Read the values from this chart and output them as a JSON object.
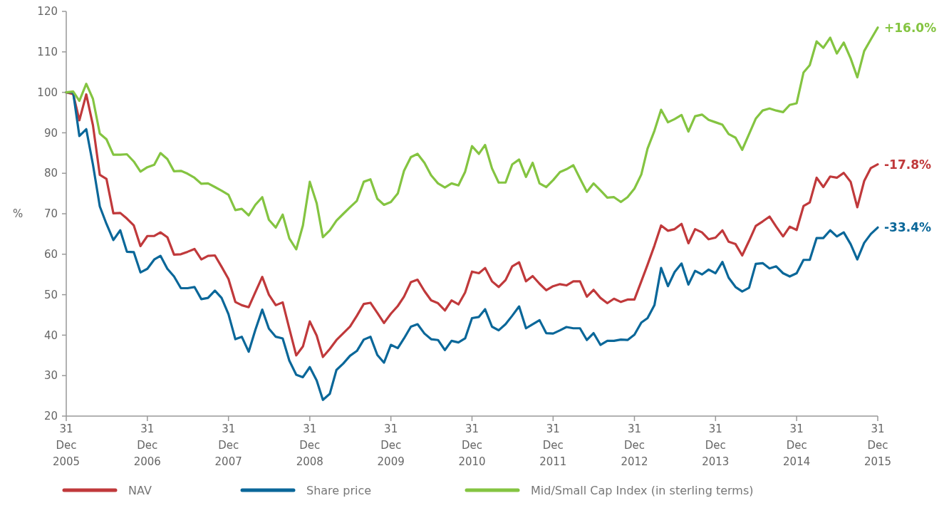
{
  "chart_data": {
    "type": "line",
    "ylabel": "%",
    "ylim": [
      20,
      120
    ],
    "yticks": [
      20,
      30,
      40,
      50,
      60,
      70,
      80,
      90,
      100,
      110,
      120
    ],
    "xlim": [
      "2005-12-31",
      "2015-12-31"
    ],
    "xticks": [
      {
        "value": "2005-12-31",
        "label": "31 Dec 2005"
      },
      {
        "value": "2006-12-31",
        "label": "31 Dec 2006"
      },
      {
        "value": "2007-12-31",
        "label": "31 Dec 2007"
      },
      {
        "value": "2008-12-31",
        "label": "31 Dec 2008"
      },
      {
        "value": "2009-12-31",
        "label": "31 Dec 2009"
      },
      {
        "value": "2010-12-31",
        "label": "31 Dec 2010"
      },
      {
        "value": "2011-12-31",
        "label": "31 Dec 2011"
      },
      {
        "value": "2012-12-31",
        "label": "31 Dec 2012"
      },
      {
        "value": "2013-12-31",
        "label": "31 Dec 2013"
      },
      {
        "value": "2014-12-31",
        "label": "31 Dec 2014"
      },
      {
        "value": "2015-12-31",
        "label": "31 Dec 2015"
      }
    ],
    "x": [
      "2005-12-31",
      "2006-01-31",
      "2006-02-28",
      "2006-03-31",
      "2006-04-30",
      "2006-05-31",
      "2006-06-30",
      "2006-07-31",
      "2006-08-31",
      "2006-09-30",
      "2006-10-31",
      "2006-11-30",
      "2006-12-31",
      "2007-01-31",
      "2007-02-28",
      "2007-03-31",
      "2007-04-30",
      "2007-05-31",
      "2007-06-30",
      "2007-07-31",
      "2007-08-31",
      "2007-09-30",
      "2007-10-31",
      "2007-11-30",
      "2007-12-31",
      "2008-01-31",
      "2008-02-29",
      "2008-03-31",
      "2008-04-30",
      "2008-05-31",
      "2008-06-30",
      "2008-07-31",
      "2008-08-31",
      "2008-09-30",
      "2008-10-31",
      "2008-11-30",
      "2008-12-31",
      "2009-01-31",
      "2009-02-28",
      "2009-03-31",
      "2009-04-30",
      "2009-05-31",
      "2009-06-30",
      "2009-07-31",
      "2009-08-31",
      "2009-09-30",
      "2009-10-31",
      "2009-11-30",
      "2009-12-31",
      "2010-01-31",
      "2010-02-28",
      "2010-03-31",
      "2010-04-30",
      "2010-05-31",
      "2010-06-30",
      "2010-07-31",
      "2010-08-31",
      "2010-09-30",
      "2010-10-31",
      "2010-11-30",
      "2010-12-31",
      "2011-01-31",
      "2011-02-28",
      "2011-03-31",
      "2011-04-30",
      "2011-05-31",
      "2011-06-30",
      "2011-07-31",
      "2011-08-31",
      "2011-09-30",
      "2011-10-31",
      "2011-11-30",
      "2011-12-31",
      "2012-01-31",
      "2012-02-29",
      "2012-03-31",
      "2012-04-30",
      "2012-05-31",
      "2012-06-30",
      "2012-07-31",
      "2012-08-31",
      "2012-09-30",
      "2012-10-31",
      "2012-11-30",
      "2012-12-31",
      "2013-01-31",
      "2013-02-28",
      "2013-03-31",
      "2013-04-30",
      "2013-05-31",
      "2013-06-30",
      "2013-07-31",
      "2013-08-31",
      "2013-09-30",
      "2013-10-31",
      "2013-11-30",
      "2013-12-31",
      "2014-01-31",
      "2014-02-28",
      "2014-03-31",
      "2014-04-30",
      "2014-05-31",
      "2014-06-30",
      "2014-07-31",
      "2014-08-31",
      "2014-09-30",
      "2014-10-31",
      "2014-11-30",
      "2014-12-31",
      "2015-01-31",
      "2015-02-28",
      "2015-03-31",
      "2015-04-30",
      "2015-05-31",
      "2015-06-30",
      "2015-07-31",
      "2015-08-31",
      "2015-09-30",
      "2015-10-31",
      "2015-11-30",
      "2015-12-31"
    ],
    "series": [
      {
        "name": "NAV",
        "color": "#c0393b",
        "values": [
          100,
          99.6,
          93.1,
          99.5,
          91.9,
          79.6,
          78.6,
          70.1,
          70.2,
          68.8,
          67.1,
          62.0,
          64.5,
          64.5,
          65.4,
          64.2,
          59.9,
          60.0,
          60.6,
          61.3,
          58.7,
          59.6,
          59.7,
          56.9,
          53.9,
          48.2,
          47.4,
          46.9,
          50.6,
          54.4,
          50.0,
          47.4,
          48.1,
          41.6,
          35.0,
          37.2,
          43.4,
          39.9,
          34.6,
          36.6,
          38.8,
          40.5,
          42.1,
          44.8,
          47.7,
          48.0,
          45.5,
          43.0,
          45.3,
          47.2,
          49.5,
          53.1,
          53.7,
          50.9,
          48.6,
          47.9,
          46.1,
          48.6,
          47.6,
          50.5,
          55.7,
          55.3,
          56.6,
          53.3,
          51.9,
          53.6,
          57.0,
          58.0,
          53.3,
          54.6,
          52.7,
          51.1,
          52.1,
          52.6,
          52.3,
          53.3,
          53.3,
          49.5,
          51.2,
          49.2,
          47.9,
          49.0,
          48.2,
          48.8,
          48.8,
          53.3,
          57.4,
          62.1,
          67.1,
          65.8,
          66.2,
          67.5,
          62.7,
          66.2,
          65.4,
          63.7,
          64.1,
          65.9,
          63.1,
          62.5,
          59.7,
          63.3,
          67.0,
          68.1,
          69.3,
          66.8,
          64.4,
          66.8,
          66.0,
          71.9,
          72.8,
          78.9,
          76.6,
          79.2,
          78.9,
          80.1,
          77.9,
          71.6,
          78.1,
          81.3,
          82.2
        ]
      },
      {
        "name": "Share price",
        "color": "#0a6799",
        "values": [
          100,
          100,
          89.2,
          90.9,
          82.2,
          71.8,
          67.5,
          63.5,
          65.9,
          60.6,
          60.5,
          55.5,
          56.4,
          58.7,
          59.6,
          56.4,
          54.5,
          51.6,
          51.6,
          51.9,
          48.9,
          49.2,
          51.0,
          49.2,
          45.2,
          39.0,
          39.6,
          35.9,
          41.3,
          46.3,
          41.6,
          39.6,
          39.2,
          33.7,
          30.2,
          29.6,
          32.1,
          28.8,
          24.0,
          25.5,
          31.4,
          33.0,
          34.9,
          36.1,
          38.9,
          39.6,
          35.1,
          33.2,
          37.6,
          36.8,
          39.2,
          42.1,
          42.7,
          40.4,
          39.0,
          38.8,
          36.3,
          38.6,
          38.2,
          39.2,
          44.2,
          44.5,
          46.4,
          42.1,
          41.2,
          42.7,
          44.8,
          47.1,
          41.7,
          42.7,
          43.7,
          40.5,
          40.4,
          41.2,
          42.0,
          41.7,
          41.7,
          38.8,
          40.5,
          37.6,
          38.6,
          38.6,
          38.9,
          38.8,
          40.1,
          43.1,
          44.2,
          47.4,
          56.6,
          52.1,
          55.6,
          57.7,
          52.5,
          55.9,
          55.0,
          56.2,
          55.3,
          58.1,
          54.2,
          51.9,
          50.8,
          51.7,
          57.6,
          57.8,
          56.5,
          57.0,
          55.3,
          54.5,
          55.3,
          58.6,
          58.6,
          64.0,
          64.0,
          65.9,
          64.4,
          65.4,
          62.5,
          58.7,
          62.8,
          65.0,
          66.6
        ]
      },
      {
        "name": "Mid/Small Cap Index (in sterling terms)",
        "color": "#84c441",
        "values": [
          100,
          100.2,
          97.9,
          102.1,
          98.4,
          89.8,
          88.4,
          84.6,
          84.6,
          84.7,
          82.9,
          80.4,
          81.5,
          82.1,
          85.0,
          83.5,
          80.5,
          80.6,
          79.9,
          78.9,
          77.4,
          77.5,
          76.6,
          75.7,
          74.7,
          70.9,
          71.2,
          69.6,
          72.2,
          74.1,
          68.5,
          66.6,
          69.8,
          63.9,
          61.2,
          67.1,
          77.9,
          72.6,
          64.2,
          65.9,
          68.3,
          70.0,
          71.6,
          73.2,
          77.9,
          78.5,
          73.7,
          72.2,
          72.9,
          75.0,
          80.6,
          84.0,
          84.8,
          82.6,
          79.5,
          77.5,
          76.5,
          77.5,
          77.0,
          80.4,
          86.7,
          84.8,
          87.0,
          81.2,
          77.7,
          77.7,
          82.2,
          83.4,
          79.1,
          82.6,
          77.5,
          76.6,
          78.3,
          80.3,
          81.0,
          82.0,
          78.7,
          75.4,
          77.5,
          75.8,
          74.0,
          74.1,
          72.9,
          74.1,
          76.2,
          79.7,
          86.1,
          90.5,
          95.7,
          92.6,
          93.4,
          94.4,
          90.3,
          94.1,
          94.5,
          93.2,
          92.6,
          92.0,
          89.7,
          88.8,
          85.8,
          89.7,
          93.5,
          95.5,
          96.0,
          95.5,
          95.1,
          96.9,
          97.3,
          104.9,
          106.7,
          112.6,
          111.0,
          113.5,
          109.6,
          112.3,
          108.4,
          103.7,
          110.2,
          113.1,
          116.0
        ]
      }
    ],
    "annotations": [
      {
        "text": "-17.8%",
        "x": "2015-12-31",
        "y": 82.2
      },
      {
        "text": "-33.4%",
        "x": "2015-12-31",
        "y": 66.6
      },
      {
        "text": "+16.0%",
        "x": "2015-12-31",
        "y": 116.0
      }
    ],
    "grid": false,
    "legend": "bottom"
  }
}
